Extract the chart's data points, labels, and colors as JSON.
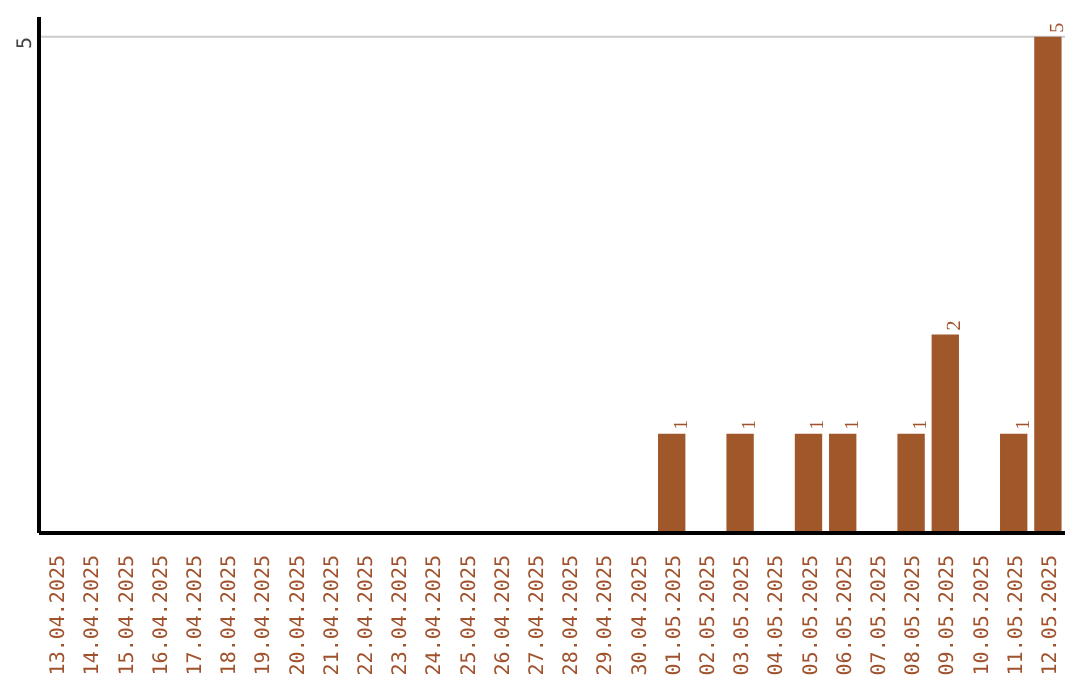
{
  "chart_data": {
    "type": "bar",
    "categories": [
      "13.04.2025",
      "14.04.2025",
      "15.04.2025",
      "16.04.2025",
      "17.04.2025",
      "18.04.2025",
      "19.04.2025",
      "20.04.2025",
      "21.04.2025",
      "22.04.2025",
      "23.04.2025",
      "24.04.2025",
      "25.04.2025",
      "26.04.2025",
      "27.04.2025",
      "28.04.2025",
      "29.04.2025",
      "30.04.2025",
      "01.05.2025",
      "02.05.2025",
      "03.05.2025",
      "04.05.2025",
      "05.05.2025",
      "06.05.2025",
      "07.05.2025",
      "08.05.2025",
      "09.05.2025",
      "10.05.2025",
      "11.05.2025",
      "12.05.2025"
    ],
    "values": [
      null,
      null,
      null,
      null,
      null,
      null,
      null,
      null,
      null,
      null,
      null,
      null,
      null,
      null,
      null,
      null,
      null,
      null,
      1,
      null,
      1,
      null,
      1,
      1,
      null,
      1,
      2,
      null,
      1,
      5
    ],
    "data_labels": true,
    "color": "#a0572a",
    "ylim": [
      0,
      5.2
    ],
    "ref_lines": [
      {
        "axis": "y",
        "value": 5,
        "label": "5",
        "color": "#cccccc"
      }
    ]
  }
}
